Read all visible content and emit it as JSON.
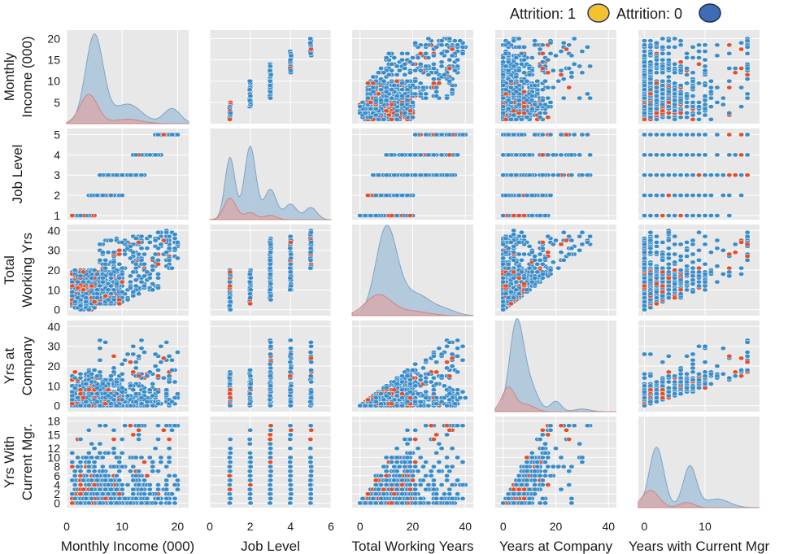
{
  "legend": {
    "items": [
      {
        "label": "Attrition: 1",
        "color": "#f6c12e",
        "stroke": "#2a3a66"
      },
      {
        "label": "Attrition: 0",
        "color": "#3f6db5",
        "stroke": "#1b2c55"
      }
    ]
  },
  "colors": {
    "panel_bg": "#e8e8e8",
    "grid": "#ffffff",
    "point_0": "#3a8cc9",
    "point_1": "#e0502c",
    "kde_0": "#a9c4da",
    "kde_1": "#d9a7a6"
  },
  "chart_data": {
    "type": "pairplot",
    "hue": "Attrition",
    "variables": [
      {
        "key": "income",
        "xlabel": "Monthly Income (000)",
        "ylabel": [
          "Monthly",
          "Income (000)"
        ],
        "range": [
          0,
          22
        ],
        "xticks": [
          0,
          10,
          20
        ],
        "yticks": [
          5,
          10,
          15,
          20
        ]
      },
      {
        "key": "joblevel",
        "xlabel": "Job Level",
        "ylabel": [
          "Job Level"
        ],
        "range": [
          0,
          6
        ],
        "yrange": [
          0.8,
          5.3
        ],
        "xticks": [
          0,
          2,
          4,
          6
        ],
        "yticks": [
          1,
          2,
          3,
          4,
          5
        ]
      },
      {
        "key": "twy",
        "xlabel": "Total Working Years",
        "ylabel": [
          "Total",
          "Working Yrs"
        ],
        "range": [
          -3,
          43
        ],
        "xticks": [
          0,
          20,
          40
        ],
        "yticks": [
          0,
          10,
          20,
          30,
          40
        ]
      },
      {
        "key": "yac",
        "xlabel": "Years at Company",
        "ylabel": [
          "Yrs at",
          "Company"
        ],
        "range": [
          -3,
          43
        ],
        "xticks": [
          0,
          20,
          40
        ],
        "yticks": [
          0,
          10,
          20,
          30,
          40
        ]
      },
      {
        "key": "ycm",
        "xlabel": "Years with Current Mgr",
        "ylabel": [
          "Yrs With",
          "Current Mgr."
        ],
        "range": [
          -1,
          19
        ],
        "xticks": [
          0,
          10
        ],
        "yticks": [
          0,
          2,
          4,
          6,
          8,
          10,
          12,
          15,
          18
        ]
      }
    ],
    "kde": {
      "income": {
        "series": [
          {
            "name": "Attrition: 0",
            "peaks": [
              [
                5,
                1.0,
                1.6
              ],
              [
                11,
                0.22,
                2.5
              ],
              [
                19,
                0.17,
                1.5
              ]
            ]
          },
          {
            "name": "Attrition: 1",
            "peaks": [
              [
                4,
                0.33,
                1.6
              ],
              [
                11,
                0.05,
                2.5
              ]
            ]
          }
        ]
      },
      "joblevel": {
        "series": [
          {
            "name": "Attrition: 0",
            "peaks": [
              [
                1,
                0.72,
                0.25
              ],
              [
                2,
                0.85,
                0.28
              ],
              [
                3,
                0.35,
                0.3
              ],
              [
                4,
                0.18,
                0.3
              ],
              [
                5,
                0.14,
                0.3
              ]
            ]
          },
          {
            "name": "Attrition: 1",
            "peaks": [
              [
                1,
                0.25,
                0.3
              ],
              [
                2,
                0.08,
                0.3
              ],
              [
                3,
                0.05,
                0.3
              ]
            ]
          }
        ]
      },
      "twy": {
        "series": [
          {
            "name": "Attrition: 0",
            "peaks": [
              [
                10,
                1.0,
                4
              ],
              [
                21,
                0.25,
                6
              ],
              [
                33,
                0.05,
                4
              ]
            ]
          },
          {
            "name": "Attrition: 1",
            "peaks": [
              [
                7,
                0.24,
                5
              ],
              [
                20,
                0.05,
                6
              ]
            ]
          }
        ]
      },
      "yac": {
        "series": [
          {
            "name": "Attrition: 0",
            "peaks": [
              [
                5,
                1.0,
                2.6
              ],
              [
                10,
                0.3,
                3
              ],
              [
                20,
                0.12,
                2
              ],
              [
                30,
                0.03,
                3
              ]
            ]
          },
          {
            "name": "Attrition: 1",
            "peaks": [
              [
                2,
                0.28,
                2.5
              ],
              [
                9,
                0.08,
                3
              ]
            ]
          }
        ]
      },
      "ycm": {
        "series": [
          {
            "name": "Attrition: 0",
            "peaks": [
              [
                2,
                0.7,
                1.2
              ],
              [
                7.5,
                0.48,
                1.1
              ],
              [
                12,
                0.1,
                2
              ]
            ]
          },
          {
            "name": "Attrition: 1",
            "peaks": [
              [
                1,
                0.2,
                1.4
              ],
              [
                7,
                0.06,
                1.2
              ]
            ]
          }
        ]
      }
    }
  }
}
